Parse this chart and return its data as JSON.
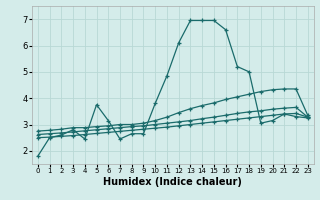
{
  "title": "",
  "xlabel": "Humidex (Indice chaleur)",
  "ylabel": "",
  "bg_color": "#d4ecea",
  "grid_color": "#b8d8d5",
  "line_color": "#1a6b6b",
  "xlim": [
    -0.5,
    23.5
  ],
  "ylim": [
    1.5,
    7.5
  ],
  "yticks": [
    2,
    3,
    4,
    5,
    6,
    7
  ],
  "xticks": [
    0,
    1,
    2,
    3,
    4,
    5,
    6,
    7,
    8,
    9,
    10,
    11,
    12,
    13,
    14,
    15,
    16,
    17,
    18,
    19,
    20,
    21,
    22,
    23
  ],
  "curves": [
    {
      "x": [
        0,
        1,
        2,
        3,
        4,
        5,
        6,
        7,
        8,
        9,
        10,
        11,
        12,
        13,
        14,
        15,
        16,
        17,
        18,
        19,
        20,
        21,
        22,
        23
      ],
      "y": [
        1.8,
        2.5,
        2.6,
        2.8,
        2.45,
        3.75,
        3.15,
        2.45,
        2.65,
        2.65,
        3.8,
        4.85,
        6.1,
        6.95,
        6.95,
        6.95,
        6.6,
        5.2,
        5.0,
        3.05,
        3.15,
        3.4,
        3.3,
        3.25
      ]
    },
    {
      "x": [
        0,
        1,
        2,
        3,
        4,
        5,
        6,
        7,
        8,
        9,
        10,
        11,
        12,
        13,
        14,
        15,
        16,
        17,
        18,
        19,
        20,
        21,
        22,
        23
      ],
      "y": [
        2.75,
        2.78,
        2.82,
        2.88,
        2.88,
        2.92,
        2.95,
        3.0,
        3.0,
        3.05,
        3.15,
        3.28,
        3.45,
        3.6,
        3.72,
        3.82,
        3.95,
        4.05,
        4.15,
        4.25,
        4.32,
        4.35,
        4.35,
        3.35
      ]
    },
    {
      "x": [
        0,
        1,
        2,
        3,
        4,
        5,
        6,
        7,
        8,
        9,
        10,
        11,
        12,
        13,
        14,
        15,
        16,
        17,
        18,
        19,
        20,
        21,
        22,
        23
      ],
      "y": [
        2.62,
        2.65,
        2.68,
        2.72,
        2.76,
        2.8,
        2.84,
        2.88,
        2.92,
        2.95,
        3.0,
        3.05,
        3.1,
        3.15,
        3.22,
        3.28,
        3.35,
        3.42,
        3.48,
        3.52,
        3.58,
        3.62,
        3.65,
        3.28
      ]
    },
    {
      "x": [
        0,
        1,
        2,
        3,
        4,
        5,
        6,
        7,
        8,
        9,
        10,
        11,
        12,
        13,
        14,
        15,
        16,
        17,
        18,
        19,
        20,
        21,
        22,
        23
      ],
      "y": [
        2.5,
        2.52,
        2.55,
        2.58,
        2.62,
        2.66,
        2.7,
        2.74,
        2.78,
        2.82,
        2.86,
        2.9,
        2.95,
        3.0,
        3.05,
        3.1,
        3.15,
        3.2,
        3.25,
        3.3,
        3.35,
        3.4,
        3.42,
        3.28
      ]
    }
  ]
}
